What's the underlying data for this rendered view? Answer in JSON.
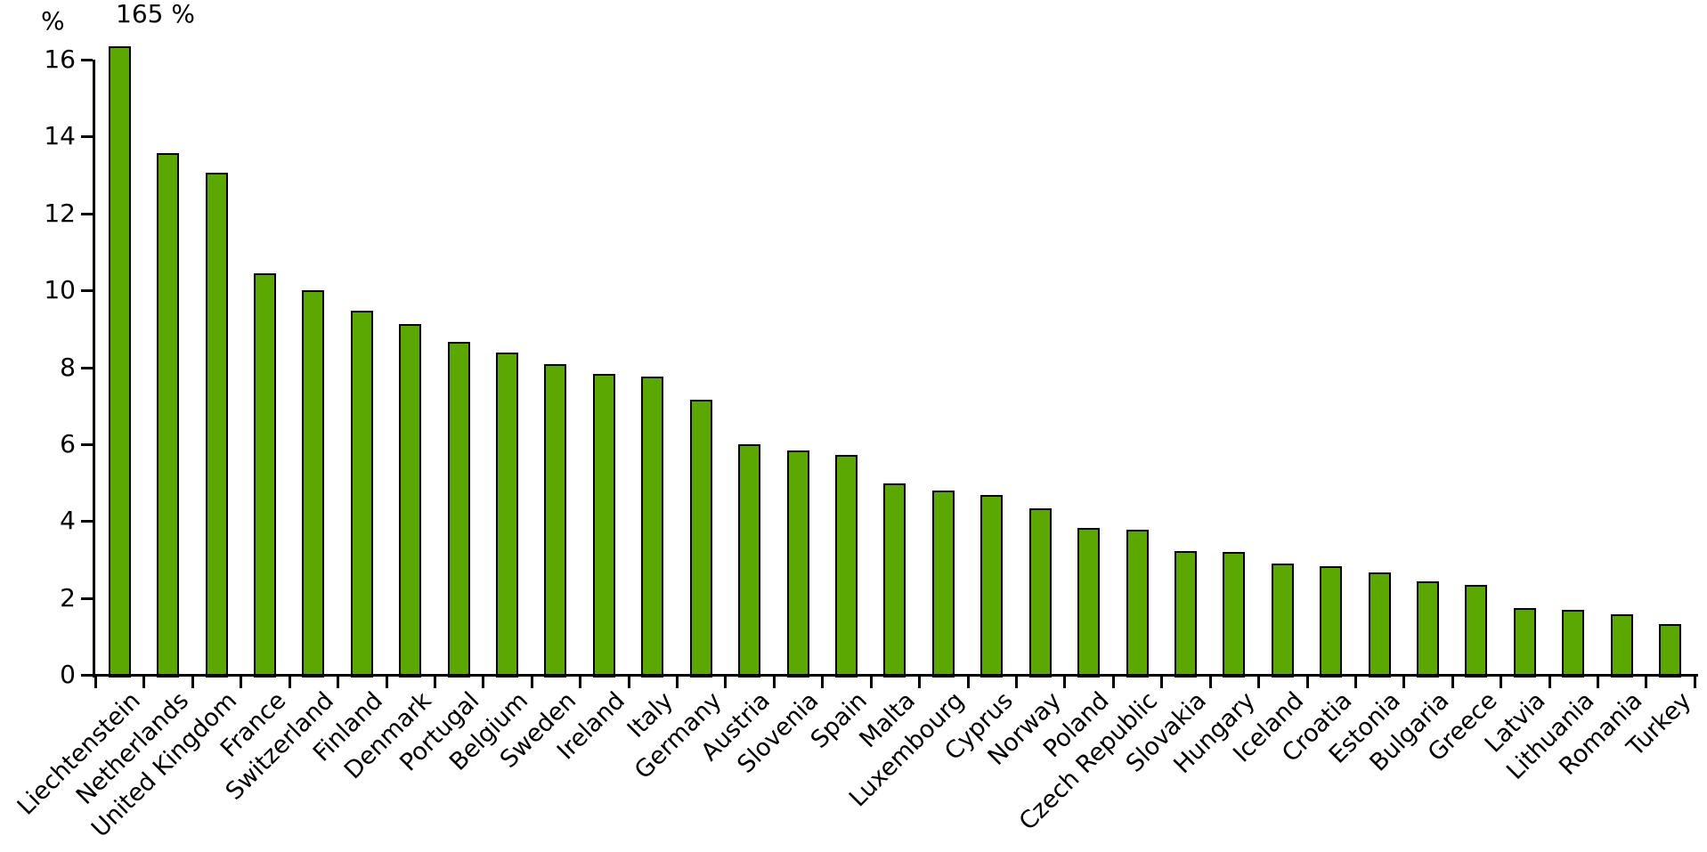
{
  "figure": {
    "background": "#ffffff"
  },
  "chart_data": {
    "type": "bar",
    "title": "",
    "xlabel": "",
    "ylabel": "%",
    "categories": [
      "Liechtenstein",
      "Netherlands",
      "United Kingdom",
      "France",
      "Switzerland",
      "Finland",
      "Denmark",
      "Portugal",
      "Belgium",
      "Sweden",
      "Ireland",
      "Italy",
      "Germany",
      "Austria",
      "Slovenia",
      "Spain",
      "Malta",
      "Luxembourg",
      "Cyprus",
      "Norway",
      "Poland",
      "Czech Republic",
      "Slovakia",
      "Hungary",
      "Iceland",
      "Croatia",
      "Estonia",
      "Bulgaria",
      "Greece",
      "Latvia",
      "Lithuania",
      "Romania",
      "Turkey"
    ],
    "values": [
      165,
      13.57,
      13.06,
      10.44,
      10.0,
      9.47,
      9.12,
      8.66,
      8.38,
      8.08,
      7.82,
      7.75,
      7.15,
      6.0,
      5.83,
      5.72,
      4.98,
      4.79,
      4.68,
      4.33,
      3.82,
      3.77,
      3.22,
      3.19,
      2.9,
      2.83,
      2.67,
      2.43,
      2.33,
      1.74,
      1.69,
      1.57,
      1.32
    ],
    "ylim": [
      0,
      16
    ],
    "ytick_interval": 2,
    "ytick_labels": [
      "0",
      "2",
      "4",
      "6",
      "8",
      "10",
      "12",
      "14",
      "16"
    ],
    "grid": false,
    "legend": null,
    "annotation": {
      "text": "165 %",
      "applies_to": "Liechtenstein",
      "note": "bar clipped at top of axis"
    },
    "clip_overflow_at": 16.35,
    "bar_color": "#5ca803",
    "bar_edge_color": "#000000",
    "axis_color": "#000000",
    "text_color": "#000000"
  }
}
